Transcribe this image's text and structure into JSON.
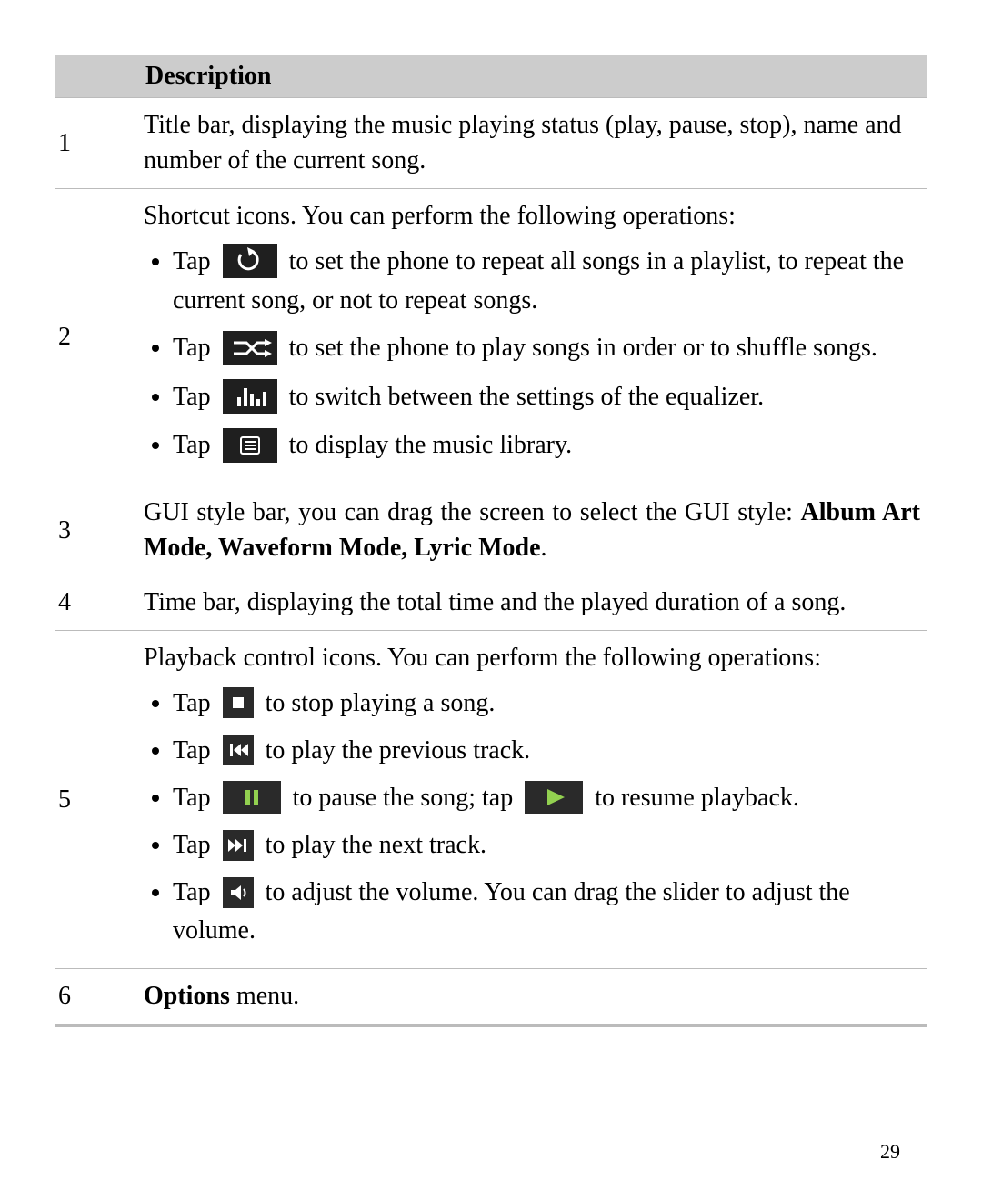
{
  "header": {
    "col2": "Description"
  },
  "icon_colors": {
    "dark_bg": "#1f1f1f",
    "dark_bg2": "#2a2a2a",
    "white": "#ffffff",
    "green": "#92d050"
  },
  "rows": [
    {
      "num": "1",
      "text": "Title bar, displaying the music playing status (play, pause, stop), name and number of the current song."
    },
    {
      "num": "2",
      "lead": "Shortcut icons. You can perform the following operations:",
      "items": [
        {
          "pre": "Tap",
          "icon": "repeat",
          "post": "to set the phone to repeat all songs in a playlist, to repeat the current song, or not to repeat songs."
        },
        {
          "pre": "Tap",
          "icon": "shuffle",
          "post": "to set the phone to play songs in order or to shuffle songs."
        },
        {
          "pre": "Tap",
          "icon": "equalizer",
          "post": "to switch between the settings of the equalizer."
        },
        {
          "pre": "Tap",
          "icon": "library",
          "post": "to display the music library."
        }
      ]
    },
    {
      "num": "3",
      "text_pre": "GUI style bar, you can drag the screen to select the GUI style: ",
      "text_bold": "Album Art Mode, Waveform Mode, Lyric Mode",
      "text_post": ".",
      "justify": true
    },
    {
      "num": "4",
      "text": "Time bar, displaying the total time and the played duration of a song."
    },
    {
      "num": "5",
      "lead": "Playback control icons. You can perform the following operations:",
      "items": [
        {
          "pre": "Tap",
          "icon": "stop",
          "post": "to stop playing a song."
        },
        {
          "pre": "Tap",
          "icon": "prev",
          "post": "to play the previous track."
        },
        {
          "pre": "Tap",
          "icon": "pause",
          "mid": "to pause the song; tap",
          "icon2": "play",
          "post": "to resume playback."
        },
        {
          "pre": "Tap",
          "icon": "next",
          "post": "to play the next track."
        },
        {
          "pre": "Tap",
          "icon": "volume",
          "post": "to adjust the volume. You can drag the slider to adjust the volume."
        }
      ]
    },
    {
      "num": "6",
      "text_bold": "Options",
      "text_post": " menu."
    }
  ],
  "page_number": "29"
}
